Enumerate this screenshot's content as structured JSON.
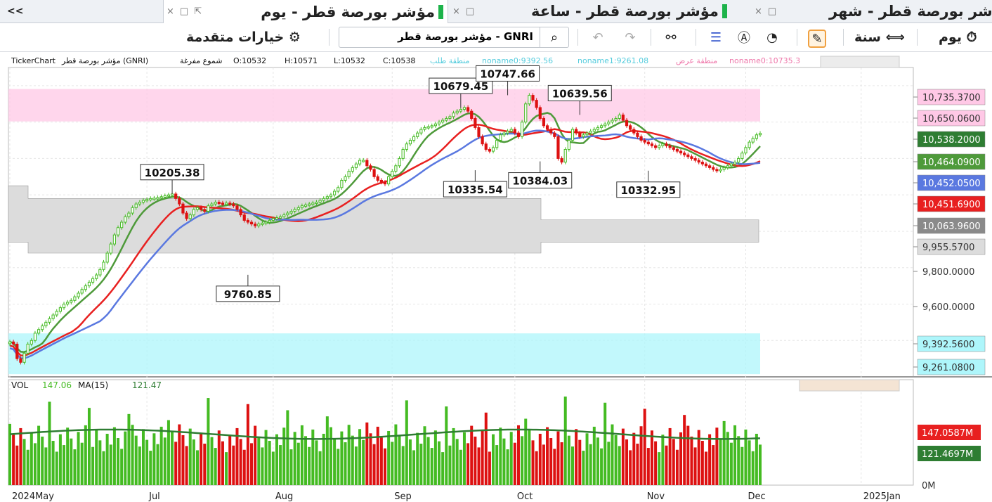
{
  "tabs": [
    {
      "label": "شر بورصة قطر - شهر",
      "active": false
    },
    {
      "label": "مؤشر بورصة قطر - ساعة",
      "active": false
    },
    {
      "label": "مؤشر بورصة قطر - يوم",
      "active": true
    }
  ],
  "collapse_label": "<<",
  "toolbar": {
    "period_day": "يوم",
    "period_year": "سنة",
    "advanced_options": "خيارات متقدمة",
    "search_value": "GNRI - مؤشر بورصة قطر"
  },
  "info": {
    "source": "TickerChart",
    "symbol": "مؤشر بورصة قطر (GNRI)",
    "style": "شموع مفرغة",
    "open": "O:10532",
    "high": "H:10571",
    "low": "L:10532",
    "close": "C:10538",
    "zone_demand": "منطقة طلب",
    "noname0": "noname0:9392.56",
    "noname1": "noname1:9261.08",
    "zone_supply": "منطقة عرض",
    "noname0b": "noname0:10735.3"
  },
  "vol_info": {
    "label": "VOL",
    "value": "147.06",
    "ma": "MA(15)",
    "ma_value": "121.47"
  },
  "colors": {
    "up": "#44bb22",
    "down": "#dd1111",
    "ma_green": "#4e9a3a",
    "ma_red": "#e82020",
    "ma_blue": "#5a78e0",
    "supply": "#ffc8e6",
    "demand": "#aef6fb",
    "gray_band": "#dcdcdc"
  },
  "chart_data": {
    "type": "candlestick",
    "ylim": [
      9200,
      10900
    ],
    "x_labels": [
      {
        "i": 0,
        "text": "2024May"
      },
      {
        "i": 38,
        "text": "Jul"
      },
      {
        "i": 73,
        "text": "Aug"
      },
      {
        "i": 106,
        "text": "Sep"
      },
      {
        "i": 140,
        "text": "Oct"
      },
      {
        "i": 176,
        "text": "Nov"
      },
      {
        "i": 204,
        "text": "Dec"
      },
      {
        "i": 236,
        "text": "2025Jan"
      }
    ],
    "close_series": [
      9392,
      9380,
      9300,
      9280,
      9330,
      9380,
      9400,
      9440,
      9460,
      9480,
      9500,
      9520,
      9540,
      9560,
      9580,
      9600,
      9610,
      9620,
      9640,
      9660,
      9680,
      9700,
      9720,
      9740,
      9760,
      9790,
      9830,
      9880,
      9930,
      9980,
      10020,
      10050,
      10080,
      10100,
      10130,
      10150,
      10160,
      10170,
      10175,
      10180,
      10182,
      10185,
      10190,
      10195,
      10200,
      10205,
      10180,
      10150,
      10100,
      10070,
      10090,
      10120,
      10130,
      10120,
      10110,
      10140,
      10150,
      10160,
      10155,
      10150,
      10155,
      10150,
      10140,
      10120,
      10090,
      10060,
      10050,
      10040,
      10030,
      10040,
      10045,
      10050,
      10060,
      10070,
      10075,
      10080,
      10090,
      10100,
      10110,
      10120,
      10130,
      10140,
      10145,
      10150,
      10155,
      10160,
      10170,
      10180,
      10190,
      10200,
      10220,
      10240,
      10280,
      10300,
      10330,
      10350,
      10370,
      10390,
      10390,
      10360,
      10340,
      10300,
      10280,
      10270,
      10260,
      10300,
      10330,
      10360,
      10400,
      10450,
      10480,
      10500,
      10520,
      10540,
      10560,
      10570,
      10575,
      10580,
      10590,
      10600,
      10610,
      10620,
      10630,
      10650,
      10660,
      10670,
      10680,
      10660,
      10620,
      10570,
      10520,
      10480,
      10450,
      10440,
      10460,
      10500,
      10530,
      10540,
      10550,
      10560,
      10540,
      10520,
      10600,
      10700,
      10747,
      10720,
      10680,
      10620,
      10580,
      10560,
      10540,
      10520,
      10400,
      10380,
      10450,
      10500,
      10560,
      10540,
      10520,
      10530,
      10540,
      10550,
      10560,
      10570,
      10580,
      10590,
      10600,
      10610,
      10620,
      10639,
      10610,
      10580,
      10560,
      10540,
      10520,
      10500,
      10490,
      10480,
      10470,
      10460,
      10470,
      10480,
      10470,
      10460,
      10450,
      10440,
      10430,
      10420,
      10410,
      10400,
      10390,
      10380,
      10370,
      10360,
      10350,
      10340,
      10333,
      10340,
      10350,
      10360,
      10370,
      10380,
      10400,
      10430,
      10460,
      10490,
      10510,
      10530,
      10538
    ],
    "ma_green_ends": [
      9380,
      9420,
      10200,
      10090,
      10680,
      10520,
      10640,
      10350,
      10480
    ],
    "price_labels": [
      {
        "text": "10,735.3700",
        "bg": "#ffc8e6",
        "fg": "#333"
      },
      {
        "text": "10,650.0600",
        "bg": "#ffc8e6",
        "fg": "#333"
      },
      {
        "text": "10,538.2000",
        "bg": "#2e7d32",
        "fg": "#ffffff"
      },
      {
        "text": "10,464.0900",
        "bg": "#4e9a3a",
        "fg": "#ffffff"
      },
      {
        "text": "10,452.0500",
        "bg": "#5a78e0",
        "fg": "#ffffff"
      },
      {
        "text": "10,451.6900",
        "bg": "#e82020",
        "fg": "#ffffff"
      },
      {
        "text": "10,063.9600",
        "bg": "#8a8a8a",
        "fg": "#ffffff"
      },
      {
        "text": "9,955.5700",
        "bg": "#dcdcdc",
        "fg": "#333"
      },
      {
        "text": "9,800.0000",
        "bg": "none",
        "fg": "#333"
      },
      {
        "text": "9,600.0000",
        "bg": "none",
        "fg": "#333"
      },
      {
        "text": "9,392.5600",
        "bg": "#aef6fb",
        "fg": "#333"
      },
      {
        "text": "9,261.0800",
        "bg": "#aef6fb",
        "fg": "#333"
      }
    ],
    "annotations": [
      {
        "text": "10205.38",
        "i": 45,
        "v": 10205.38,
        "pos": "above"
      },
      {
        "text": "9760.85",
        "i": 66,
        "v": 9760.85,
        "pos": "below"
      },
      {
        "text": "10679.45",
        "i": 125,
        "v": 10679.45,
        "pos": "above"
      },
      {
        "text": "10747.66",
        "i": 138,
        "v": 10747.66,
        "pos": "above"
      },
      {
        "text": "10335.54",
        "i": 129,
        "v": 10335.54,
        "pos": "below"
      },
      {
        "text": "10384.03",
        "i": 147,
        "v": 10384.03,
        "pos": "below"
      },
      {
        "text": "10639.56",
        "i": 158,
        "v": 10639.56,
        "pos": "above"
      },
      {
        "text": "10332.95",
        "i": 177,
        "v": 10332.95,
        "pos": "below"
      }
    ],
    "zones": [
      {
        "name": "supply",
        "from": 10650.06,
        "to": 10735.37
      },
      {
        "name": "demand",
        "from": 9261.08,
        "to": 9392.56
      }
    ],
    "volume": {
      "ylim": [
        0,
        200
      ],
      "labels": [
        {
          "text": "147.0587M",
          "bg": "#e82020",
          "fg": "#ffffff"
        },
        {
          "text": "121.4697M",
          "bg": "#2e7d32",
          "fg": "#ffffff"
        },
        {
          "text": "0M",
          "bg": "none",
          "fg": "#333"
        }
      ]
    }
  }
}
